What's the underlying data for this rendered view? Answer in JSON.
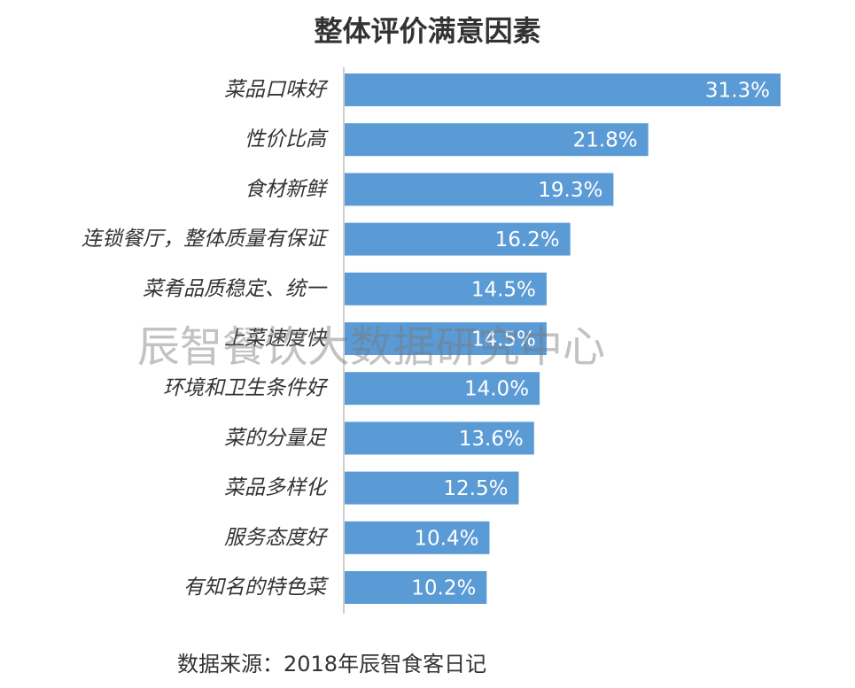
{
  "chart_data": {
    "type": "bar",
    "orientation": "horizontal",
    "title": "整体评价满意因素",
    "categories": [
      "菜品口味好",
      "性价比高",
      "食材新鲜",
      "连锁餐厅，整体质量有保证",
      "菜肴品质稳定、统一",
      "上菜速度快",
      "环境和卫生条件好",
      "菜的分量足",
      "菜品多样化",
      "服务态度好",
      "有知名的特色菜"
    ],
    "values": [
      31.3,
      21.8,
      19.3,
      16.2,
      14.5,
      14.5,
      14.0,
      13.6,
      12.5,
      10.4,
      10.2
    ],
    "value_labels": [
      "31.3%",
      "21.8%",
      "19.3%",
      "16.2%",
      "14.5%",
      "14.5%",
      "14.0%",
      "13.6%",
      "12.5%",
      "10.4%",
      "10.2%"
    ],
    "xlim": [
      0,
      31.3
    ],
    "grid": false,
    "legend": "none",
    "bar_color": "#5b9bd5"
  },
  "watermark": "辰智餐饮大数据研究中心",
  "source": "数据来源：2018年辰智食客日记"
}
